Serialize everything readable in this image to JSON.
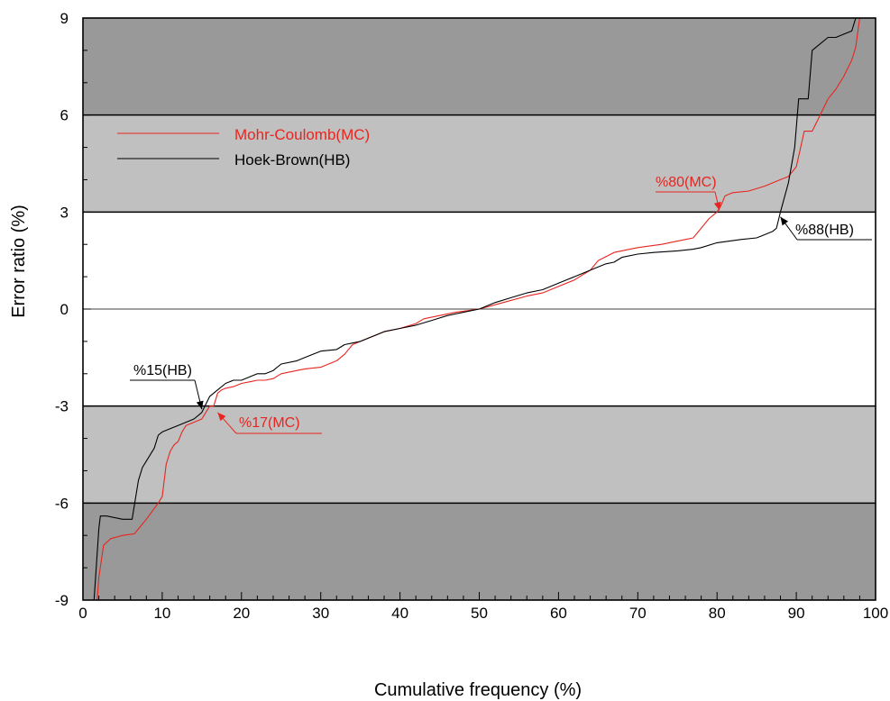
{
  "chart_data": {
    "type": "line",
    "xlabel": "Cumulative frequency (%)",
    "ylabel": "Error ratio  (%)",
    "xlim": [
      0,
      100
    ],
    "ylim": [
      -9,
      9
    ],
    "x_ticks": [
      0,
      10,
      20,
      30,
      40,
      50,
      60,
      70,
      80,
      90,
      100
    ],
    "y_ticks": [
      -9,
      -6,
      -3,
      0,
      3,
      6,
      9
    ],
    "x_tick_labels": [
      "0",
      "10",
      "20",
      "30",
      "40",
      "50",
      "60",
      "70",
      "80",
      "90",
      "100"
    ],
    "y_tick_labels": [
      "-9",
      "-6",
      "-3",
      "0",
      "3",
      "6",
      "9"
    ],
    "grid": false,
    "legend_position": "top-left",
    "bands": [
      {
        "from": 6,
        "to": 9,
        "color": "#999999"
      },
      {
        "from": 3,
        "to": 6,
        "color": "#c0c0c0"
      },
      {
        "from": -6,
        "to": -3,
        "color": "#c0c0c0"
      },
      {
        "from": -9,
        "to": -6,
        "color": "#999999"
      }
    ],
    "series": [
      {
        "name": "Mohr-Coulomb(MC)",
        "color": "#e8251f",
        "x": [
          1.8,
          2.0,
          2.6,
          3.5,
          5.0,
          6.5,
          8.0,
          9.5,
          10.0,
          10.5,
          11.0,
          11.5,
          12.0,
          12.5,
          13.0,
          14.0,
          15.0,
          16.0,
          16.5,
          17.0,
          17.5,
          18.0,
          19.0,
          20.0,
          21.0,
          22.0,
          23.0,
          24.0,
          25.0,
          27.0,
          28.0,
          30.0,
          32.0,
          33.0,
          34.0,
          35.0,
          36.0,
          38.0,
          40.0,
          42.0,
          43.0,
          45.0,
          47.0,
          50.0,
          53.0,
          56.0,
          58.0,
          60.0,
          62.0,
          64.0,
          65.0,
          67.0,
          69.0,
          70.0,
          73.0,
          75.0,
          77.0,
          78.0,
          79.0,
          80.0,
          80.5,
          81.0,
          82.0,
          84.0,
          86.0,
          87.0,
          88.0,
          89.0,
          90.0,
          91.0,
          92.0,
          93.0,
          94.0,
          95.0,
          96.0,
          97.0,
          97.5,
          98.0
        ],
        "values": [
          -9.0,
          -8.3,
          -7.3,
          -7.1,
          -7.0,
          -6.95,
          -6.5,
          -6.0,
          -5.8,
          -4.8,
          -4.4,
          -4.2,
          -4.1,
          -3.8,
          -3.6,
          -3.5,
          -3.4,
          -3.0,
          -3.0,
          -2.6,
          -2.5,
          -2.45,
          -2.4,
          -2.3,
          -2.25,
          -2.2,
          -2.2,
          -2.15,
          -2.0,
          -1.9,
          -1.85,
          -1.8,
          -1.6,
          -1.4,
          -1.1,
          -1.0,
          -0.9,
          -0.7,
          -0.6,
          -0.45,
          -0.3,
          -0.2,
          -0.1,
          0.0,
          0.2,
          0.4,
          0.5,
          0.7,
          0.9,
          1.2,
          1.5,
          1.75,
          1.85,
          1.9,
          2.0,
          2.1,
          2.2,
          2.5,
          2.8,
          3.0,
          3.2,
          3.5,
          3.6,
          3.65,
          3.8,
          3.9,
          4.0,
          4.1,
          4.4,
          5.5,
          5.5,
          6.0,
          6.5,
          6.8,
          7.2,
          7.7,
          8.1,
          9.0
        ]
      },
      {
        "name": "Hoek-Brown(HB)",
        "color": "#000000",
        "x": [
          1.4,
          2.0,
          2.2,
          3.0,
          5.0,
          6.2,
          7.0,
          7.5,
          8.0,
          9.0,
          9.5,
          10.0,
          11.0,
          12.0,
          13.0,
          14.0,
          15.0,
          16.0,
          17.0,
          18.0,
          19.0,
          20.0,
          21.0,
          22.0,
          23.0,
          24.0,
          25.0,
          27.0,
          28.0,
          30.0,
          32.0,
          33.0,
          34.0,
          35.0,
          37.0,
          38.0,
          40.0,
          42.0,
          44.0,
          46.0,
          48.0,
          50.0,
          52.0,
          54.0,
          56.0,
          58.0,
          60.0,
          62.0,
          64.0,
          65.0,
          66.0,
          67.0,
          68.0,
          70.0,
          72.0,
          75.0,
          77.0,
          78.0,
          80.0,
          83.0,
          85.0,
          86.0,
          87.0,
          87.5,
          88.0,
          89.0,
          89.8,
          90.3,
          91.0,
          91.5,
          92.0,
          93.0,
          94.0,
          95.0,
          96.0,
          97.0,
          97.5
        ],
        "values": [
          -9.0,
          -6.8,
          -6.4,
          -6.4,
          -6.5,
          -6.5,
          -5.3,
          -4.9,
          -4.7,
          -4.3,
          -3.9,
          -3.8,
          -3.7,
          -3.6,
          -3.5,
          -3.4,
          -3.2,
          -2.7,
          -2.5,
          -2.3,
          -2.2,
          -2.2,
          -2.1,
          -2.0,
          -2.0,
          -1.9,
          -1.7,
          -1.6,
          -1.5,
          -1.3,
          -1.25,
          -1.1,
          -1.05,
          -1.0,
          -0.8,
          -0.7,
          -0.6,
          -0.5,
          -0.35,
          -0.2,
          -0.1,
          0.0,
          0.2,
          0.35,
          0.5,
          0.6,
          0.8,
          1.0,
          1.2,
          1.3,
          1.4,
          1.45,
          1.6,
          1.7,
          1.75,
          1.8,
          1.85,
          1.9,
          2.05,
          2.15,
          2.2,
          2.3,
          2.4,
          2.5,
          3.0,
          3.9,
          5.0,
          6.5,
          6.5,
          6.5,
          8.0,
          8.2,
          8.4,
          8.4,
          8.5,
          8.6,
          9.0
        ]
      }
    ],
    "annotations": [
      {
        "text": "%80(MC)",
        "color": "#e8251f",
        "x": 80.3,
        "y": 3.05
      },
      {
        "text": "%88(HB)",
        "color": "#000000",
        "x": 88.0,
        "y": 2.85
      },
      {
        "text": "%15(HB)",
        "color": "#000000",
        "x": 15.0,
        "y": -3.1
      },
      {
        "text": "%17(MC)",
        "color": "#e8251f",
        "x": 17.0,
        "y": -3.2
      }
    ]
  }
}
